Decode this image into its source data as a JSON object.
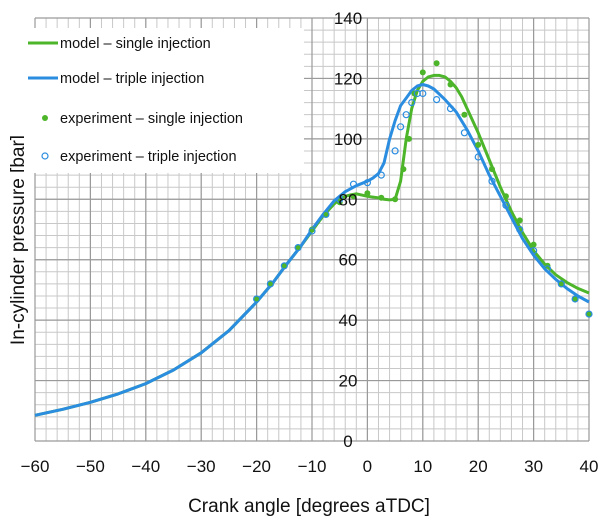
{
  "chart_data": {
    "type": "line",
    "xlabel": "Crank angle [degrees aTDC]",
    "ylabel": "In-cylinder pressure [bar]",
    "xlim": [
      -60,
      40
    ],
    "ylim": [
      0,
      140
    ],
    "x_ticks": [
      -60,
      -50,
      -40,
      -30,
      -20,
      -10,
      0,
      10,
      20,
      30,
      40
    ],
    "y_ticks": [
      0,
      20,
      40,
      60,
      80,
      100,
      120,
      140
    ],
    "x_tick_labels": [
      "−60",
      "−50",
      "−40",
      "−30",
      "−20",
      "−10",
      "0",
      "10",
      "20",
      "30",
      "40"
    ],
    "y_tick_labels": [
      "0",
      "20",
      "40",
      "60",
      "80",
      "100",
      "120",
      "140"
    ],
    "grid": true,
    "minor_grid_step_x": 2,
    "minor_grid_step_y": 4,
    "legend_position": "top-left",
    "colors": {
      "single": "#4db52a",
      "triple": "#2b8de0",
      "grid_major": "#9a9a9a",
      "grid_minor": "#c8c8c8"
    },
    "series": [
      {
        "name": "model – single injection",
        "kind": "line",
        "x": [
          -60,
          -55,
          -50,
          -45,
          -40,
          -35,
          -30,
          -25,
          -20,
          -17,
          -15,
          -12,
          -10,
          -8,
          -6,
          -5,
          -4,
          -3,
          -2,
          0,
          2,
          3,
          4,
          5,
          6,
          7,
          8,
          9,
          10,
          11,
          12,
          13,
          14,
          15,
          16,
          17,
          18,
          20,
          22,
          24,
          26,
          28,
          30,
          32,
          34,
          36,
          38,
          40
        ],
        "y": [
          8.5,
          10.5,
          12.8,
          15.6,
          19.0,
          23.5,
          29.2,
          36.5,
          46.0,
          52.5,
          57.5,
          64.5,
          69.5,
          74.5,
          78.5,
          80.0,
          81.0,
          81.5,
          81.8,
          81.0,
          80.5,
          80.0,
          79.8,
          80.0,
          86.0,
          100.0,
          110.0,
          116.0,
          119.0,
          120.5,
          121.0,
          121.0,
          120.5,
          119.0,
          117.0,
          114.0,
          110.0,
          102.0,
          93.0,
          84.0,
          76.0,
          69.0,
          63.0,
          58.5,
          55.0,
          52.5,
          50.5,
          49.0
        ]
      },
      {
        "name": "model – triple injection",
        "kind": "line",
        "x": [
          -60,
          -55,
          -50,
          -45,
          -40,
          -35,
          -30,
          -25,
          -20,
          -17,
          -15,
          -12,
          -10,
          -8,
          -6,
          -4,
          -2,
          0,
          1,
          2,
          3,
          4,
          5,
          6,
          7,
          8,
          9,
          10,
          11,
          12,
          14,
          16,
          18,
          20,
          22,
          24,
          26,
          28,
          30,
          32,
          34,
          36,
          38,
          40
        ],
        "y": [
          8.5,
          10.5,
          12.8,
          15.6,
          19.0,
          23.5,
          29.2,
          36.5,
          46.0,
          52.5,
          57.5,
          64.5,
          70.0,
          75.0,
          79.5,
          82.5,
          84.5,
          86.0,
          87.0,
          88.5,
          92.0,
          100.0,
          106.0,
          111.0,
          113.5,
          116.0,
          117.5,
          118.0,
          117.5,
          116.5,
          113.0,
          109.0,
          103.0,
          96.0,
          88.0,
          81.0,
          74.0,
          67.0,
          61.5,
          57.0,
          53.5,
          50.5,
          48.0,
          46.0
        ]
      },
      {
        "name": "experiment – single injection",
        "kind": "scatter",
        "x": [
          -20,
          -17.5,
          -15,
          -12.5,
          -10,
          -7.5,
          -5,
          -2.5,
          0,
          2.5,
          5,
          6.5,
          7.5,
          8.5,
          10,
          12.5,
          15,
          17.5,
          20,
          22.5,
          25,
          27.5,
          30,
          32.5,
          35,
          37.5,
          40
        ],
        "y": [
          47,
          52,
          58,
          64,
          70,
          75,
          79,
          81,
          82,
          80.5,
          80,
          90,
          100,
          115,
          122,
          125,
          118,
          108,
          98,
          90,
          81,
          73,
          65,
          58,
          52,
          47,
          42
        ]
      },
      {
        "name": "experiment – triple injection",
        "kind": "scatter",
        "x": [
          -20,
          -17.5,
          -15,
          -12.5,
          -10,
          -7.5,
          -5,
          -2.5,
          0,
          2.5,
          5,
          6,
          7,
          8,
          9,
          10,
          12.5,
          15,
          17.5,
          20,
          22.5,
          25,
          27.5,
          30,
          32.5,
          35,
          37.5,
          40
        ],
        "y": [
          47,
          52,
          58,
          64,
          69.5,
          75,
          80,
          85,
          85.5,
          88,
          96,
          104,
          108,
          112,
          115,
          115,
          113,
          110,
          102,
          94,
          86,
          78,
          70,
          63,
          57,
          52,
          47,
          42
        ]
      }
    ]
  }
}
